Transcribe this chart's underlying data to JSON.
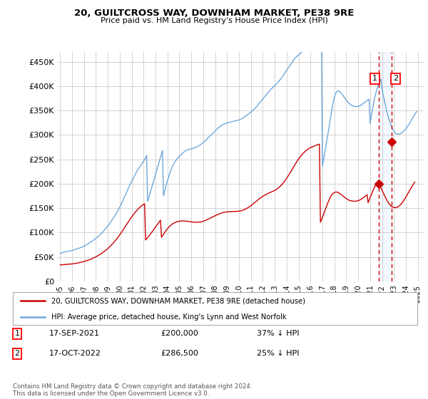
{
  "title": "20, GUILTCROSS WAY, DOWNHAM MARKET, PE38 9RE",
  "subtitle": "Price paid vs. HM Land Registry's House Price Index (HPI)",
  "legend_line1": "20, GUILTCROSS WAY, DOWNHAM MARKET, PE38 9RE (detached house)",
  "legend_line2": "HPI: Average price, detached house, King's Lynn and West Norfolk",
  "footer": "Contains HM Land Registry data © Crown copyright and database right 2024.\nThis data is licensed under the Open Government Licence v3.0.",
  "table_rows": [
    {
      "num": "1",
      "date": "17-SEP-2021",
      "price": "£200,000",
      "pct": "37% ↓ HPI"
    },
    {
      "num": "2",
      "date": "17-OCT-2022",
      "price": "£286,500",
      "pct": "25% ↓ HPI"
    }
  ],
  "hpi_color": "#6fa8dc",
  "price_color": "#cc0000",
  "vline_color": "#cc0000",
  "grid_color": "#cccccc",
  "bg_color": "#ffffff",
  "ylim": [
    0,
    470000
  ],
  "yticks": [
    0,
    50000,
    100000,
    150000,
    200000,
    250000,
    300000,
    350000,
    400000,
    450000
  ],
  "ytick_labels": [
    "£0",
    "£50K",
    "£100K",
    "£150K",
    "£200K",
    "£250K",
    "£300K",
    "£350K",
    "£400K",
    "£450K"
  ],
  "xtick_years": [
    1995,
    1996,
    1997,
    1998,
    1999,
    2000,
    2001,
    2002,
    2003,
    2004,
    2005,
    2006,
    2007,
    2008,
    2009,
    2010,
    2011,
    2012,
    2013,
    2014,
    2015,
    2016,
    2017,
    2018,
    2019,
    2020,
    2021,
    2022,
    2023,
    2024,
    2025
  ],
  "sale1_x": 2021.7,
  "sale1_y": 200000,
  "sale2_x": 2022.8,
  "sale2_y": 286500,
  "vline1_x": 2021.7,
  "vline2_x": 2022.8,
  "hpi_base_values": [
    57000,
    57800,
    58500,
    59000,
    59800,
    60200,
    60800,
    61000,
    61500,
    61800,
    62200,
    62500,
    63000,
    63800,
    64500,
    65200,
    66000,
    66500,
    67200,
    67800,
    68500,
    69200,
    70000,
    70800,
    72000,
    73000,
    74200,
    75500,
    76800,
    78000,
    79500,
    80800,
    82200,
    83800,
    85000,
    86500,
    88000,
    89500,
    91200,
    93000,
    95000,
    97000,
    99200,
    101200,
    103500,
    106000,
    108500,
    111000,
    113500,
    116000,
    119000,
    122000,
    125000,
    128000,
    131000,
    134000,
    137000,
    140500,
    144000,
    148000,
    152000,
    156000,
    160500,
    165000,
    169500,
    174000,
    178500,
    183000,
    187500,
    192000,
    196500,
    200500,
    204500,
    208500,
    212500,
    216500,
    220500,
    224500,
    228000,
    231000,
    234000,
    237000,
    240000,
    243000,
    246000,
    249500,
    253500,
    258000,
    163500,
    170000,
    177000,
    184000,
    191000,
    198000,
    205000,
    212000,
    219000,
    226000,
    233000,
    240000,
    247000,
    254000,
    261000,
    268000,
    175000,
    183000,
    191000,
    200000,
    206000,
    213000,
    219000,
    225000,
    230000,
    235000,
    239000,
    243000,
    246000,
    249000,
    252000,
    254000,
    256000,
    258000,
    260000,
    262000,
    264000,
    265500,
    267000,
    268000,
    269000,
    270000,
    270500,
    271000,
    271500,
    272000,
    272800,
    273500,
    274000,
    275000,
    276000,
    277000,
    278000,
    279500,
    281000,
    282500,
    284000,
    286000,
    288000,
    290000,
    292000,
    294000,
    296000,
    298000,
    300000,
    302000,
    304000,
    306000,
    308000,
    310000,
    312000,
    314000,
    315500,
    317000,
    318500,
    320000,
    321000,
    322000,
    323000,
    324000,
    324500,
    325000,
    325500,
    326000,
    326500,
    327000,
    327500,
    328000,
    328500,
    329000,
    329500,
    330000,
    330500,
    331000,
    332000,
    333000,
    334500,
    336000,
    337500,
    339000,
    340500,
    342000,
    343500,
    345000,
    346500,
    348000,
    350000,
    352000,
    354000,
    356000,
    358500,
    361000,
    363500,
    366000,
    368500,
    371000,
    373500,
    376000,
    378500,
    381000,
    383500,
    385500,
    388000,
    390500,
    393000,
    395000,
    397000,
    399000,
    401000,
    403000,
    405000,
    407000,
    409500,
    412000,
    414500,
    417000,
    420000,
    423000,
    426000,
    429000,
    432000,
    435000,
    438000,
    441000,
    444000,
    447000,
    450000,
    453000,
    456000,
    458000,
    460000,
    462000,
    464000,
    466000,
    467500,
    469000,
    470500,
    472000,
    473500,
    475000,
    476500,
    477500,
    478500,
    479500,
    480500,
    481500,
    482500,
    484000,
    485500,
    487000,
    488500,
    490000,
    492000,
    494000,
    496000,
    498000,
    236000,
    247000,
    259000,
    271000,
    283000,
    295000,
    308000,
    320000,
    333000,
    345500,
    357000,
    367500,
    376500,
    383000,
    387000,
    389500,
    390000,
    389000,
    387500,
    385500,
    383000,
    380000,
    377000,
    374000,
    371000,
    368500,
    366000,
    364000,
    362500,
    361000,
    360000,
    359000,
    358500,
    358000,
    358000,
    358000,
    358500,
    359000,
    360000,
    361000,
    362500,
    364000,
    365500,
    367000,
    368500,
    370000,
    371500,
    373000,
    323000,
    335000,
    347000,
    359000,
    370000,
    379000,
    387000,
    394000,
    400000,
    405500,
    410000,
    414000,
    394000,
    384000,
    374000,
    364500,
    355500,
    347000,
    339000,
    332000,
    326000,
    320000,
    315000,
    311000,
    307500,
    305000,
    303000,
    302000,
    301500,
    301500,
    302000,
    303000,
    304500,
    306000,
    308000,
    310000,
    312000,
    315000,
    318000,
    321000,
    324500,
    328000,
    331500,
    335000,
    338500,
    342000,
    345000,
    348000
  ],
  "price_base_values": [
    33500,
    33700,
    33900,
    34100,
    34300,
    34400,
    34600,
    34800,
    34900,
    35100,
    35200,
    35400,
    35600,
    35900,
    36200,
    36500,
    36800,
    37200,
    37600,
    38100,
    38500,
    39000,
    39500,
    40000,
    40600,
    41200,
    41800,
    42500,
    43200,
    43900,
    44700,
    45500,
    46400,
    47300,
    48200,
    49200,
    50200,
    51300,
    52500,
    53800,
    55000,
    56300,
    57700,
    59100,
    60600,
    62100,
    63700,
    65400,
    67200,
    69000,
    71000,
    73000,
    75200,
    77400,
    79600,
    82000,
    84400,
    87000,
    89700,
    92500,
    95300,
    98200,
    101200,
    104300,
    107400,
    110500,
    113700,
    116900,
    120000,
    123000,
    126000,
    129000,
    131900,
    134700,
    137400,
    140000,
    142500,
    144900,
    147200,
    149200,
    151200,
    153000,
    154700,
    156200,
    157600,
    158900,
    84600,
    87000,
    89500,
    92000,
    94600,
    97200,
    99900,
    102600,
    105400,
    108200,
    111000,
    113900,
    116700,
    119600,
    122500,
    125400,
    90000,
    93000,
    96200,
    99500,
    102200,
    105000,
    107600,
    110000,
    112200,
    114200,
    115900,
    117400,
    118700,
    119800,
    120700,
    121500,
    122100,
    122600,
    123000,
    123300,
    123500,
    123600,
    123600,
    123500,
    123400,
    123200,
    123000,
    122700,
    122400,
    122100,
    121800,
    121500,
    121200,
    121000,
    120900,
    120800,
    120800,
    121000,
    121200,
    121500,
    121900,
    122400,
    123000,
    123700,
    124500,
    125400,
    126400,
    127400,
    128400,
    129400,
    130400,
    131400,
    132400,
    133400,
    134400,
    135400,
    136300,
    137200,
    138000,
    138800,
    139500,
    140200,
    140800,
    141300,
    141700,
    142000,
    142200,
    142400,
    142500,
    142600,
    142700,
    142800,
    142800,
    142900,
    143000,
    143100,
    143200,
    143400,
    143700,
    144000,
    144500,
    145000,
    145700,
    146500,
    147400,
    148400,
    149500,
    150700,
    152000,
    153400,
    154900,
    156500,
    158200,
    159900,
    161600,
    163300,
    165000,
    166600,
    168200,
    169800,
    171300,
    172700,
    174100,
    175300,
    176500,
    177600,
    178700,
    179700,
    180700,
    181600,
    182500,
    183300,
    184200,
    185100,
    186200,
    187300,
    188600,
    190100,
    191800,
    193600,
    195600,
    197700,
    200000,
    202500,
    205200,
    208000,
    211000,
    214100,
    217300,
    220600,
    224000,
    227500,
    231000,
    234500,
    237900,
    241200,
    244400,
    247500,
    250400,
    253200,
    255900,
    258400,
    260800,
    263000,
    265000,
    266800,
    268500,
    270000,
    271400,
    272600,
    273700,
    274700,
    275600,
    276500,
    277300,
    278100,
    278900,
    279600,
    280300,
    281000,
    121000,
    125700,
    131000,
    136500,
    142000,
    147500,
    153000,
    158200,
    163300,
    168000,
    172200,
    175700,
    178500,
    180600,
    181900,
    182700,
    182900,
    182500,
    181700,
    180500,
    179200,
    177700,
    176000,
    174300,
    172600,
    171000,
    169400,
    168000,
    167000,
    166000,
    165300,
    164700,
    164300,
    164100,
    164000,
    164000,
    164300,
    164700,
    165300,
    166000,
    167000,
    168200,
    169500,
    170900,
    172400,
    174000,
    175600,
    177300,
    161000,
    166000,
    171200,
    176500,
    181600,
    186400,
    190900,
    195000,
    198700,
    202000,
    204900,
    207500,
    196000,
    191300,
    186600,
    182100,
    177800,
    173600,
    169600,
    165900,
    162500,
    159500,
    156800,
    154600,
    153000,
    151900,
    151200,
    150900,
    151000,
    151500,
    152500,
    153900,
    155600,
    157700,
    160200,
    162900,
    165800,
    169000,
    172400,
    175900,
    179500,
    183100,
    186700,
    190300,
    193700,
    197100,
    200300,
    203400
  ]
}
